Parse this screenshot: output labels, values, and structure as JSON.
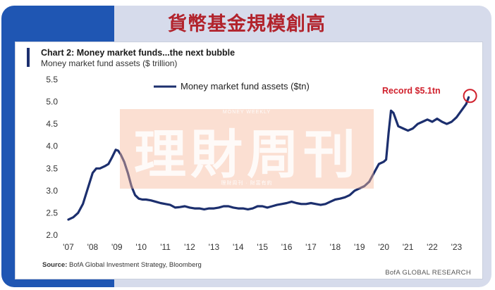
{
  "headline": "貨幣基金規模創高",
  "watermark": {
    "main": "理財周刊",
    "top": "MONEY WEEKLY",
    "bottom": "理財周刊 · 財富有約"
  },
  "chart_data": {
    "type": "line",
    "title": "Chart 2: Money market funds...the next bubble",
    "subtitle": "Money market fund assets ($ trillion)",
    "legend": "Money market fund assets ($tn)",
    "legend_position": "top-left",
    "annotation": "Record $5.1tn",
    "source_label": "Source:",
    "source_text": "BofA Global Investment Strategy, Bloomberg",
    "brand": "BofA GLOBAL RESEARCH",
    "ylim": [
      2.0,
      5.5
    ],
    "yticks": [
      "2.0",
      "2.5",
      "3.0",
      "3.5",
      "4.0",
      "4.5",
      "5.0",
      "5.5"
    ],
    "xticks": [
      "'07",
      "'08",
      "'09",
      "'10",
      "'11",
      "'12",
      "'13",
      "'14",
      "'15",
      "'16",
      "'17",
      "'18",
      "'19",
      "'20",
      "'21",
      "'22",
      "'23"
    ],
    "grid": false,
    "colors": {
      "line": "#1c2f6e",
      "annotation": "#d0202c"
    },
    "series": [
      {
        "x": [
          2007.0,
          2007.2,
          2007.4,
          2007.6,
          2007.8,
          2008.0,
          2008.15,
          2008.3,
          2008.5,
          2008.65,
          2008.8,
          2008.95,
          2009.05,
          2009.15,
          2009.3,
          2009.45,
          2009.6,
          2009.75,
          2009.9,
          2010.05,
          2010.2,
          2010.4,
          2010.6,
          2010.8,
          2011.0,
          2011.2,
          2011.4,
          2011.6,
          2011.8,
          2012.0,
          2012.2,
          2012.4,
          2012.6,
          2012.8,
          2013.0,
          2013.2,
          2013.4,
          2013.6,
          2013.8,
          2014.0,
          2014.2,
          2014.4,
          2014.6,
          2014.8,
          2015.0,
          2015.2,
          2015.4,
          2015.6,
          2015.8,
          2016.0,
          2016.2,
          2016.4,
          2016.6,
          2016.8,
          2017.0,
          2017.2,
          2017.4,
          2017.6,
          2017.8,
          2018.0,
          2018.2,
          2018.4,
          2018.6,
          2018.8,
          2019.0,
          2019.2,
          2019.4,
          2019.6,
          2019.8,
          2020.0,
          2020.1,
          2020.2,
          2020.3,
          2020.4,
          2020.5,
          2020.6,
          2020.8,
          2021.0,
          2021.2,
          2021.4,
          2021.6,
          2021.8,
          2022.0,
          2022.2,
          2022.4,
          2022.6,
          2022.8,
          2023.0,
          2023.2,
          2023.4,
          2023.5
        ],
        "values": [
          2.35,
          2.4,
          2.5,
          2.7,
          3.05,
          3.4,
          3.5,
          3.5,
          3.55,
          3.6,
          3.75,
          3.92,
          3.9,
          3.82,
          3.65,
          3.4,
          3.1,
          2.9,
          2.82,
          2.8,
          2.8,
          2.78,
          2.75,
          2.72,
          2.7,
          2.68,
          2.62,
          2.63,
          2.65,
          2.62,
          2.6,
          2.6,
          2.58,
          2.6,
          2.6,
          2.62,
          2.65,
          2.65,
          2.62,
          2.6,
          2.6,
          2.58,
          2.6,
          2.65,
          2.65,
          2.62,
          2.65,
          2.68,
          2.7,
          2.72,
          2.75,
          2.72,
          2.7,
          2.7,
          2.72,
          2.7,
          2.68,
          2.7,
          2.75,
          2.8,
          2.82,
          2.85,
          2.9,
          3.0,
          3.05,
          3.1,
          3.2,
          3.4,
          3.6,
          3.65,
          3.7,
          4.3,
          4.8,
          4.75,
          4.6,
          4.45,
          4.4,
          4.35,
          4.4,
          4.5,
          4.55,
          4.6,
          4.55,
          4.62,
          4.55,
          4.5,
          4.55,
          4.65,
          4.8,
          4.95,
          5.1
        ]
      }
    ]
  }
}
